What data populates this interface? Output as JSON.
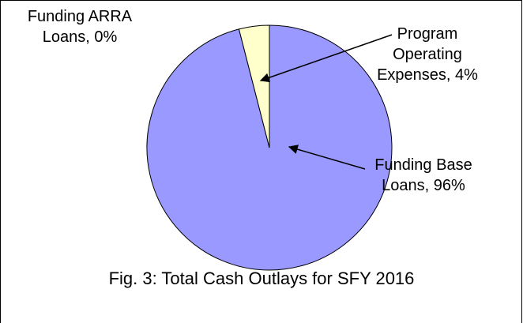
{
  "chart_data": {
    "type": "pie",
    "title": "Fig. 3:  Total Cash Outlays for SFY 2016",
    "categories": [
      "Funding Base Loans",
      "Program Operating Expenses",
      "Funding ARRA Loans"
    ],
    "values": [
      96,
      4,
      0
    ],
    "value_labels": [
      "96%",
      "4%",
      "0%"
    ],
    "colors": [
      "#9999ff",
      "#ffffcc",
      "#993366"
    ]
  }
}
